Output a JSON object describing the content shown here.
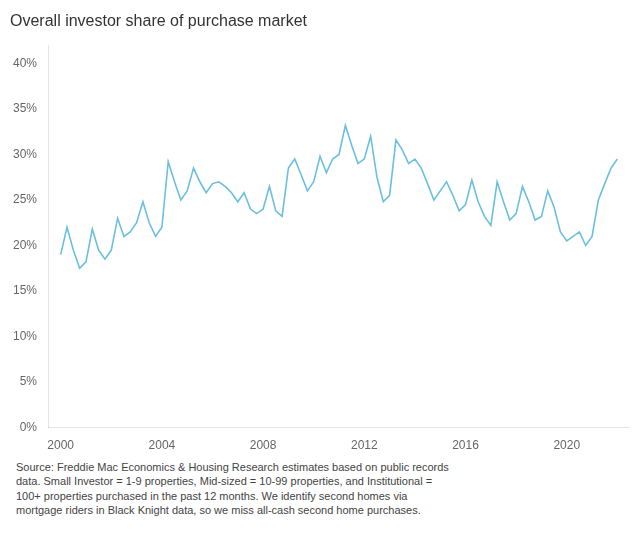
{
  "chart_data": {
    "type": "line",
    "title": "Overall investor share of purchase market",
    "annotation": "Source: Freddie Mac Economics & Housing Research estimates based on public records\ndata. Small Investor = 1-9 properties, Mid-sized = 10-99 properties, and Institutional =\n100+ properties purchased in the past 12 months. We identify second homes via\nmortgage riders in Black Knight data, so we miss all-cash second home purchases.",
    "color": "#6BBFDF",
    "grid": false,
    "xlim": [
      1999.5,
      2022.5
    ],
    "ylim": [
      0,
      0.42
    ],
    "xticks": [
      2000,
      2004,
      2008,
      2012,
      2016,
      2020
    ],
    "yticks": [
      {
        "value": 0.0,
        "label": "0%"
      },
      {
        "value": 0.05,
        "label": "5%"
      },
      {
        "value": 0.1,
        "label": "10%"
      },
      {
        "value": 0.15,
        "label": "15%"
      },
      {
        "value": 0.2,
        "label": "20%"
      },
      {
        "value": 0.25,
        "label": "25%"
      },
      {
        "value": 0.3,
        "label": "30%"
      },
      {
        "value": 0.35,
        "label": "35%"
      },
      {
        "value": 0.4,
        "label": "40%"
      }
    ],
    "x": [
      2000.0,
      2000.25,
      2000.5,
      2000.75,
      2001.0,
      2001.25,
      2001.5,
      2001.75,
      2002.0,
      2002.25,
      2002.5,
      2002.75,
      2003.0,
      2003.25,
      2003.5,
      2003.75,
      2004.0,
      2004.25,
      2004.5,
      2004.75,
      2005.0,
      2005.25,
      2005.5,
      2005.75,
      2006.0,
      2006.25,
      2006.5,
      2006.75,
      2007.0,
      2007.25,
      2007.5,
      2007.75,
      2008.0,
      2008.25,
      2008.5,
      2008.75,
      2009.0,
      2009.25,
      2009.5,
      2009.75,
      2010.0,
      2010.25,
      2010.5,
      2010.75,
      2011.0,
      2011.25,
      2011.5,
      2011.75,
      2012.0,
      2012.25,
      2012.5,
      2012.75,
      2013.0,
      2013.25,
      2013.5,
      2013.75,
      2014.0,
      2014.25,
      2014.5,
      2014.75,
      2015.0,
      2015.25,
      2015.5,
      2015.75,
      2016.0,
      2016.25,
      2016.5,
      2016.75,
      2017.0,
      2017.25,
      2017.5,
      2017.75,
      2018.0,
      2018.25,
      2018.5,
      2018.75,
      2019.0,
      2019.25,
      2019.5,
      2019.75,
      2020.0,
      2020.25,
      2020.5,
      2020.75,
      2021.0,
      2021.25,
      2021.5,
      2021.75,
      2022.0
    ],
    "values": [
      0.19,
      0.22,
      0.195,
      0.175,
      0.182,
      0.218,
      0.195,
      0.185,
      0.195,
      0.23,
      0.21,
      0.215,
      0.225,
      0.248,
      0.225,
      0.21,
      0.22,
      0.292,
      0.27,
      0.25,
      0.26,
      0.285,
      0.27,
      0.258,
      0.268,
      0.27,
      0.265,
      0.258,
      0.248,
      0.258,
      0.24,
      0.235,
      0.24,
      0.265,
      0.238,
      0.232,
      0.285,
      0.295,
      0.278,
      0.26,
      0.27,
      0.298,
      0.28,
      0.295,
      0.3,
      0.332,
      0.31,
      0.29,
      0.295,
      0.32,
      0.275,
      0.248,
      0.255,
      0.316,
      0.305,
      0.29,
      0.295,
      0.285,
      0.268,
      0.25,
      0.26,
      0.27,
      0.255,
      0.238,
      0.245,
      0.272,
      0.248,
      0.232,
      0.222,
      0.27,
      0.248,
      0.228,
      0.235,
      0.265,
      0.248,
      0.228,
      0.232,
      0.26,
      0.242,
      0.215,
      0.205,
      0.21,
      0.215,
      0.2,
      0.21,
      0.25,
      0.268,
      0.285,
      0.295
    ]
  }
}
